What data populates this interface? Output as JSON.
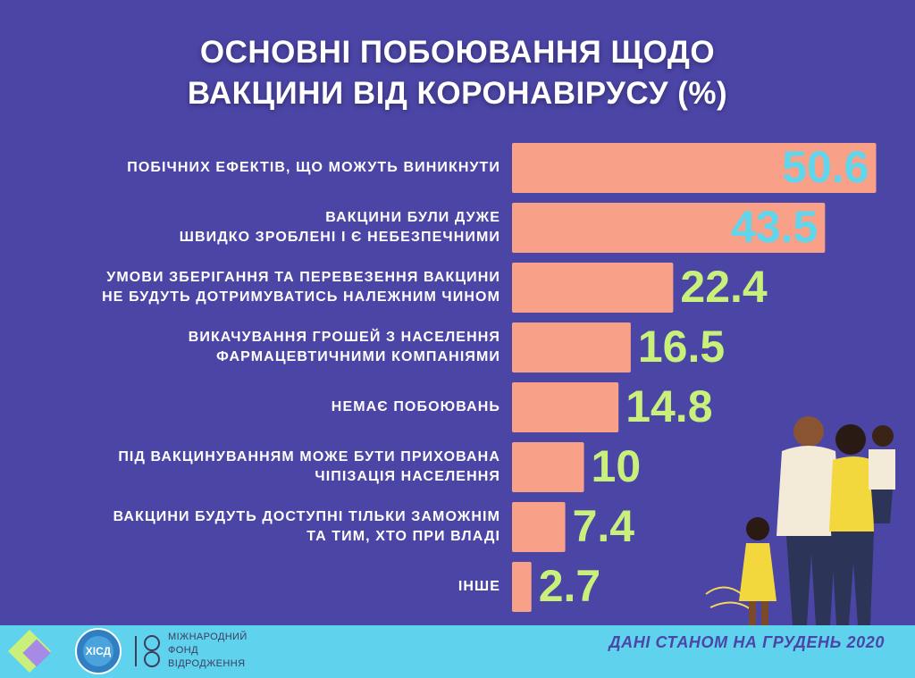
{
  "chart_data": {
    "type": "hbar",
    "title": "ОСНОВНІ ПОБОЮВАННЯ ЩОДО\nВАКЦИНИ ВІД КОРОНАВІРУСУ (%)",
    "categories": [
      "ПОБІЧНИХ ЕФЕКТІВ, ЩО МОЖУТЬ ВИНИКНУТИ",
      "ВАКЦИНИ БУЛИ ДУЖЕ\nШВИДКО ЗРОБЛЕНІ І Є НЕБЕЗПЕЧНИМИ",
      "УМОВИ ЗБЕРІГАННЯ ТА ПЕРЕВЕЗЕННЯ ВАКЦИНИ\nНЕ БУДУТЬ ДОТРИМУВАТИСЬ НАЛЕЖНИМ ЧИНОМ",
      "ВИКАЧУВАННЯ ГРОШЕЙ З НАСЕЛЕННЯ\nФАРМАЦЕВТИЧНИМИ КОМПАНІЯМИ",
      "НЕМАЄ ПОБОЮВАНЬ",
      "ПІД ВАКЦИНУВАННЯМ МОЖЕ БУТИ ПРИХОВАНА\nЧІПІЗАЦІЯ НАСЕЛЕННЯ",
      "ВАКЦИНИ БУДУТЬ ДОСТУПНІ ТІЛЬКИ ЗАМОЖНІМ\nТА ТИМ, ХТО ПРИ ВЛАДІ",
      "ІНШЕ"
    ],
    "values": [
      50.6,
      43.5,
      22.4,
      16.5,
      14.8,
      10,
      7.4,
      2.7
    ],
    "color": "#f9a088",
    "value_label_colors": {
      "inside": "#5fd6ec",
      "outside": "#c9f07a"
    },
    "xlim": [
      0,
      56
    ],
    "footer": "ДАНІ СТАНОМ НА ГРУДЕНЬ 2020",
    "logos": [
      "МІЖНАРОДНИЙ\nФОНД\nВІДРОДЖЕННЯ",
      "ХІСД"
    ]
  }
}
